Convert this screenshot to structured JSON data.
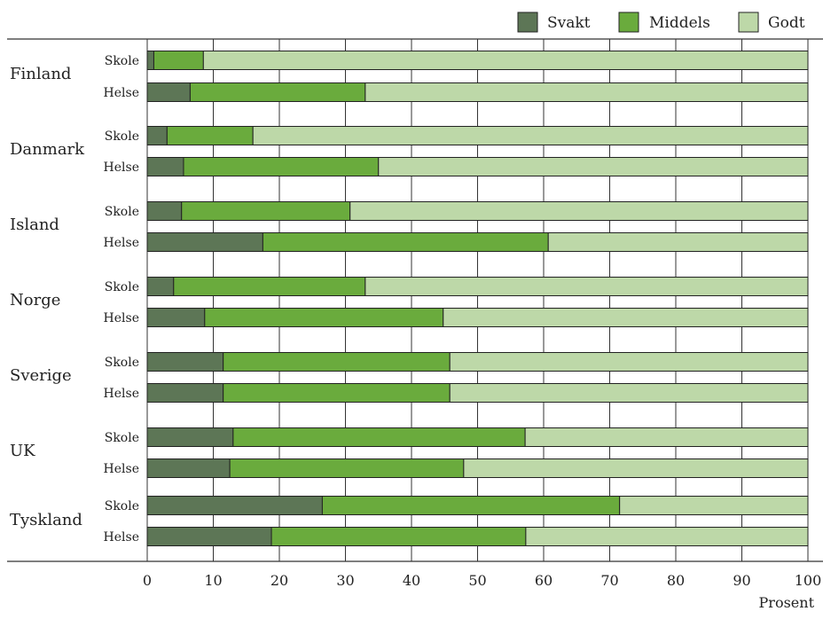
{
  "chart_data": {
    "type": "bar",
    "orientation": "horizontal",
    "stacked": true,
    "xlabel": "Prosent",
    "xlim": [
      0,
      100
    ],
    "xticks": [
      0,
      10,
      20,
      30,
      40,
      50,
      60,
      70,
      80,
      90,
      100
    ],
    "grid": true,
    "legend_position": "top-right",
    "series_names": [
      "Svakt",
      "Middels",
      "Godt"
    ],
    "colors": [
      "#5d7656",
      "#6aab3d",
      "#bdd8a8"
    ],
    "groups": [
      {
        "country": "Finland",
        "rows": [
          {
            "label": "Skole",
            "values": [
              1,
              7.5,
              91.5
            ]
          },
          {
            "label": "Helse",
            "values": [
              6.5,
              26.5,
              67
            ]
          }
        ]
      },
      {
        "country": "Danmark",
        "rows": [
          {
            "label": "Skole",
            "values": [
              3,
              13,
              84
            ]
          },
          {
            "label": "Helse",
            "values": [
              5.5,
              29.5,
              65
            ]
          }
        ]
      },
      {
        "country": "Island",
        "rows": [
          {
            "label": "Skole",
            "values": [
              5.2,
              25.5,
              69.3
            ]
          },
          {
            "label": "Helse",
            "values": [
              17.5,
              43.2,
              39.3
            ]
          }
        ]
      },
      {
        "country": "Norge",
        "rows": [
          {
            "label": "Skole",
            "values": [
              4,
              29,
              67
            ]
          },
          {
            "label": "Helse",
            "values": [
              8.7,
              36.1,
              55.2
            ]
          }
        ]
      },
      {
        "country": "Sverige",
        "rows": [
          {
            "label": "Skole",
            "values": [
              11.5,
              34.3,
              54.2
            ]
          },
          {
            "label": "Helse",
            "values": [
              11.5,
              34.3,
              54.2
            ]
          }
        ]
      },
      {
        "country": "UK",
        "rows": [
          {
            "label": "Skole",
            "values": [
              13,
              44.2,
              42.8
            ]
          },
          {
            "label": "Helse",
            "values": [
              12.5,
              35.4,
              52.1
            ]
          }
        ]
      },
      {
        "country": "Tyskland",
        "rows": [
          {
            "label": "Skole",
            "values": [
              26.5,
              45,
              28.5
            ]
          },
          {
            "label": "Helse",
            "values": [
              18.8,
              38.5,
              42.7
            ]
          }
        ]
      }
    ]
  }
}
